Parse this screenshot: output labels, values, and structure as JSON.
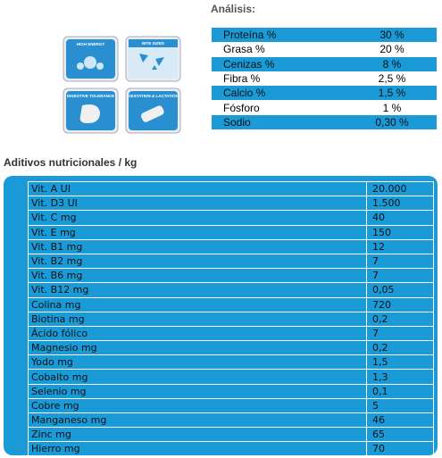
{
  "badges": [
    "HIGH ENERGY",
    "BITE SIZED",
    "DIGESTIVE TOLERANCE",
    "GESTATION & LACTATION"
  ],
  "analysis": {
    "title": "Análisis:",
    "rows": [
      [
        "Proteína %",
        "30 %"
      ],
      [
        "Grasa %",
        "20 %"
      ],
      [
        "Cenizas %",
        "8 %"
      ],
      [
        "Fibra %",
        "2,5 %"
      ],
      [
        "Calcio %",
        "1,5 %"
      ],
      [
        "Fósforo",
        "1 %"
      ],
      [
        "Sodio",
        "0,30 %"
      ]
    ]
  },
  "additives": {
    "title": "Aditivos nutricionales / kg",
    "rows": [
      [
        "Vit. A UI",
        "20.000"
      ],
      [
        "Vit. D3 UI",
        "1.500"
      ],
      [
        "Vit. C mg",
        "40"
      ],
      [
        "Vit. E mg",
        "150"
      ],
      [
        "Vit. B1 mg",
        "12"
      ],
      [
        "Vit. B2 mg",
        "7"
      ],
      [
        "Vit. B6 mg",
        "7"
      ],
      [
        "Vit. B12 mg",
        "0,05"
      ],
      [
        "Colina mg",
        "720"
      ],
      [
        "Biotina mg",
        "0,2"
      ],
      [
        "Ácido fólico",
        "7"
      ],
      [
        "Magnesio mg",
        "0,2"
      ],
      [
        "Yodo mg",
        "1,5"
      ],
      [
        "Cobalto mg",
        "1,3"
      ],
      [
        "Selenio mg",
        "0,1"
      ],
      [
        "Cobre mg",
        "5"
      ],
      [
        "Manganeso mg",
        "46"
      ],
      [
        "Zinc mg",
        "65"
      ],
      [
        "Hierro mg",
        "70"
      ]
    ]
  }
}
